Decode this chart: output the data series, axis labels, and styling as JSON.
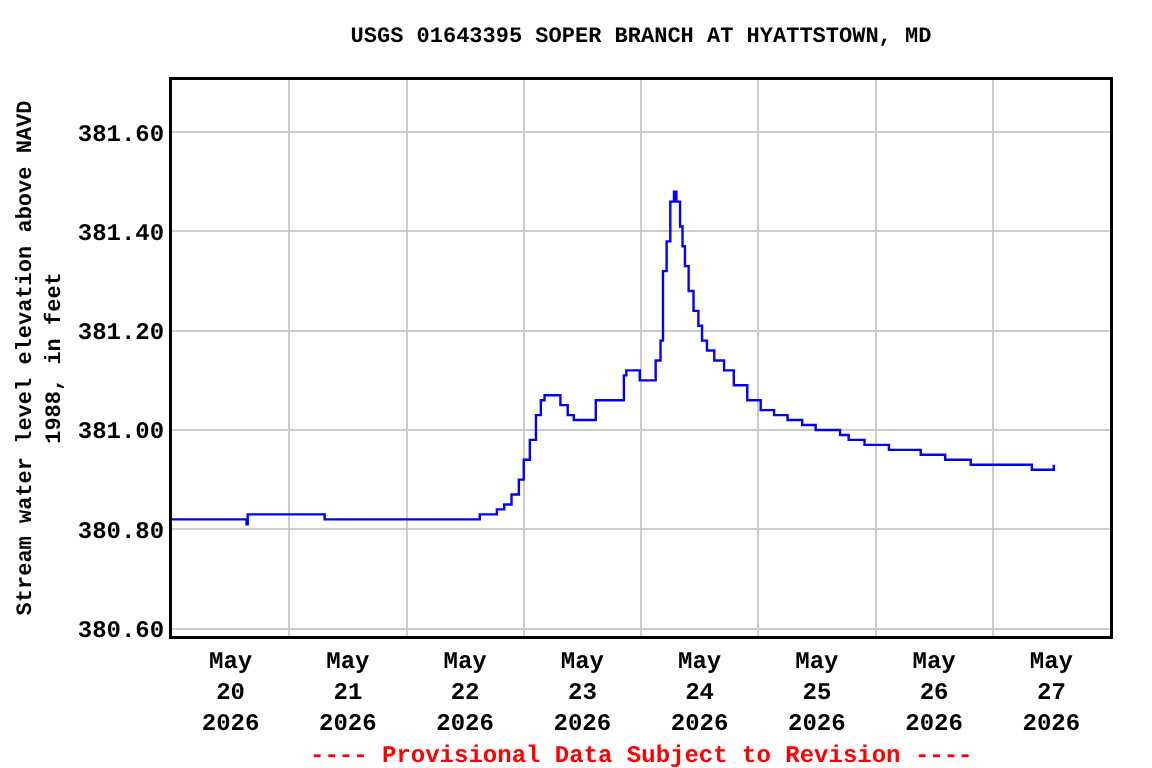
{
  "chart_data": {
    "type": "step",
    "title": "USGS 01643395 SOPER BRANCH AT HYATTSTOWN, MD",
    "ylabel": "Stream water level elevation above NAVD 1988, in feet",
    "x": [
      "2026-05-20T00:00",
      "2026-05-20T14:45",
      "2026-05-20T15:15",
      "2026-05-20T15:30",
      "2026-05-21T07:00",
      "2026-05-21T07:15",
      "2026-05-22T14:45",
      "2026-05-22T15:00",
      "2026-05-22T18:00",
      "2026-05-22T18:30",
      "2026-05-22T20:00",
      "2026-05-22T21:30",
      "2026-05-22T23:00",
      "2026-05-23T00:00",
      "2026-05-23T01:15",
      "2026-05-23T02:30",
      "2026-05-23T03:30",
      "2026-05-23T04:15",
      "2026-05-23T06:15",
      "2026-05-23T07:30",
      "2026-05-23T09:00",
      "2026-05-23T10:15",
      "2026-05-23T13:15",
      "2026-05-23T14:45",
      "2026-05-23T19:15",
      "2026-05-23T20:30",
      "2026-05-23T21:00",
      "2026-05-23T22:30",
      "2026-05-23T23:45",
      "2026-05-24T02:15",
      "2026-05-24T03:00",
      "2026-05-24T04:00",
      "2026-05-24T04:30",
      "2026-05-24T05:15",
      "2026-05-24T06:00",
      "2026-05-24T06:45",
      "2026-05-24T07:15",
      "2026-05-24T08:00",
      "2026-05-24T08:30",
      "2026-05-24T09:00",
      "2026-05-24T09:45",
      "2026-05-24T10:45",
      "2026-05-24T11:45",
      "2026-05-24T12:30",
      "2026-05-24T13:30",
      "2026-05-24T15:00",
      "2026-05-24T17:00",
      "2026-05-24T19:00",
      "2026-05-24T21:45",
      "2026-05-25T00:30",
      "2026-05-25T03:15",
      "2026-05-25T06:00",
      "2026-05-25T09:00",
      "2026-05-25T11:45",
      "2026-05-25T16:45",
      "2026-05-25T18:30",
      "2026-05-25T21:45",
      "2026-05-26T02:45",
      "2026-05-26T09:15",
      "2026-05-26T14:15",
      "2026-05-26T19:30",
      "2026-05-27T08:00",
      "2026-05-27T12:30"
    ],
    "series": [
      {
        "color": "#0000ff",
        "values": [
          380.82,
          380.82,
          380.81,
          380.83,
          380.83,
          380.82,
          380.82,
          380.83,
          380.83,
          380.84,
          380.85,
          380.87,
          380.9,
          380.94,
          380.98,
          381.03,
          381.06,
          381.07,
          381.07,
          381.05,
          381.03,
          381.02,
          381.02,
          381.06,
          381.06,
          381.11,
          381.12,
          381.12,
          381.1,
          381.1,
          381.14,
          381.18,
          381.32,
          381.38,
          381.46,
          381.48,
          381.46,
          381.41,
          381.37,
          381.33,
          381.28,
          381.24,
          381.21,
          381.18,
          381.16,
          381.14,
          381.12,
          381.09,
          381.06,
          381.04,
          381.03,
          381.02,
          381.01,
          381.0,
          380.99,
          380.98,
          380.97,
          380.96,
          380.95,
          380.94,
          380.93,
          380.92,
          380.93
        ]
      }
    ],
    "xlim": [
      "2026-05-20T00:00",
      "2026-05-28T00:00"
    ],
    "xticks": [
      {
        "value": "2026-05-20T12:00",
        "label": "May\n20\n2026"
      },
      {
        "value": "2026-05-21T12:00",
        "label": "May\n21\n2026"
      },
      {
        "value": "2026-05-22T12:00",
        "label": "May\n22\n2026"
      },
      {
        "value": "2026-05-23T12:00",
        "label": "May\n23\n2026"
      },
      {
        "value": "2026-05-24T12:00",
        "label": "May\n24\n2026"
      },
      {
        "value": "2026-05-25T12:00",
        "label": "May\n25\n2026"
      },
      {
        "value": "2026-05-26T12:00",
        "label": "May\n26\n2026"
      },
      {
        "value": "2026-05-27T12:00",
        "label": "May\n27\n2026"
      },
      {
        "value": "2026-05-21T00:00",
        "label": null
      },
      {
        "value": "2026-05-22T00:00",
        "label": null
      },
      {
        "value": "2026-05-23T00:00",
        "label": null
      },
      {
        "value": "2026-05-24T00:00",
        "label": null
      },
      {
        "value": "2026-05-25T00:00",
        "label": null
      },
      {
        "value": "2026-05-26T00:00",
        "label": null
      },
      {
        "value": "2026-05-27T00:00",
        "label": null
      }
    ],
    "ylim": [
      380.585,
      381.705
    ],
    "yticks": [
      {
        "value": 380.6,
        "label": "380.60"
      },
      {
        "value": 380.8,
        "label": "380.80"
      },
      {
        "value": 381.0,
        "label": "381.00"
      },
      {
        "value": 381.2,
        "label": "381.20"
      },
      {
        "value": 381.4,
        "label": "381.40"
      },
      {
        "value": 381.6,
        "label": "381.60"
      }
    ],
    "grid": true,
    "legend": false,
    "annotations": [
      "---- Provisional Data Subject to Revision ----"
    ]
  }
}
